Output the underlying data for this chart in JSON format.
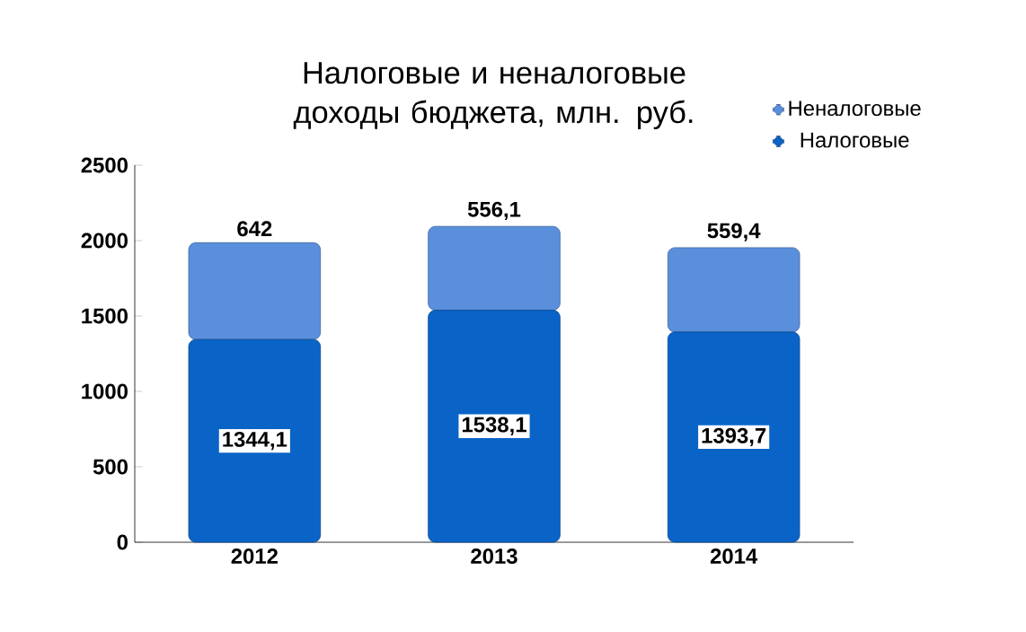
{
  "chart_data": {
    "type": "bar",
    "stacked": true,
    "title": "Налоговые и неналоговые доходы бюджета, млн. руб.",
    "categories": [
      "2012",
      "2013",
      "2014"
    ],
    "series": [
      {
        "name": "Налоговые",
        "color": "#0a64c8",
        "values": [
          1344.1,
          1538.1,
          1393.7
        ],
        "value_labels": [
          "1344,1",
          "1538,1",
          "1393,7"
        ]
      },
      {
        "name": "Неналоговые",
        "color": "#5a8fdc",
        "values": [
          642,
          556.1,
          559.4
        ],
        "value_labels": [
          "642",
          "556,1",
          "559,4"
        ]
      }
    ],
    "ylim": [
      0,
      2500
    ],
    "yticks": [
      0,
      500,
      1000,
      1500,
      2000,
      2500
    ],
    "legend": "top right",
    "grid": false
  }
}
